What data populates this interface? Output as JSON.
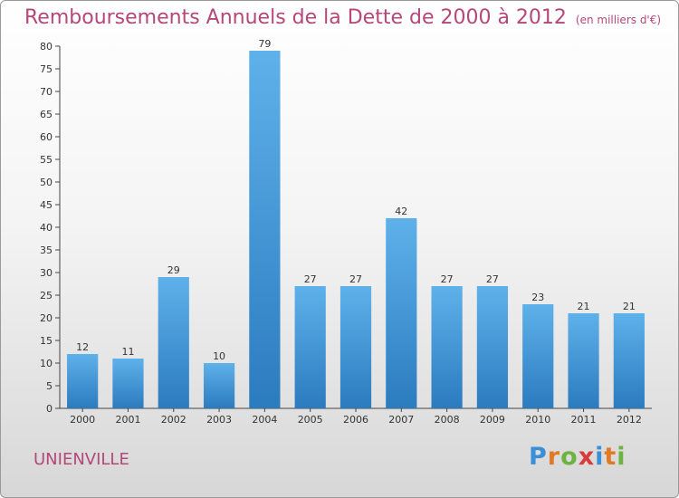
{
  "title": "Remboursements Annuels de la Dette de 2000 à 2012",
  "subtitle": "(en milliers d'€)",
  "commune": "UNIENVILLE",
  "logo": {
    "letters": [
      "P",
      "r",
      "o",
      "x",
      "i",
      "t",
      "i"
    ],
    "colors": [
      "#3b8fd6",
      "#e27a25",
      "#6cb33f",
      "#d93a3a",
      "#3b8fd6",
      "#e27a25",
      "#6cb33f"
    ]
  },
  "colors": {
    "title": "#b5477a",
    "bar_top": "#5fb1ea",
    "bar_bottom": "#2b7bbf",
    "axis": "#444444"
  },
  "chart_data": {
    "type": "bar",
    "title": "Remboursements Annuels de la Dette de 2000 à 2012",
    "subtitle": "(en milliers d'€)",
    "categories": [
      "2000",
      "2001",
      "2002",
      "2003",
      "2004",
      "2005",
      "2006",
      "2007",
      "2008",
      "2009",
      "2010",
      "2011",
      "2012"
    ],
    "values": [
      12,
      11,
      29,
      10,
      79,
      27,
      27,
      42,
      27,
      27,
      23,
      21,
      21
    ],
    "ylim": [
      0,
      80
    ],
    "yticks": [
      0,
      5,
      10,
      15,
      20,
      25,
      30,
      35,
      40,
      45,
      50,
      55,
      60,
      65,
      70,
      75,
      80
    ],
    "grid": false,
    "data_labels": true
  }
}
